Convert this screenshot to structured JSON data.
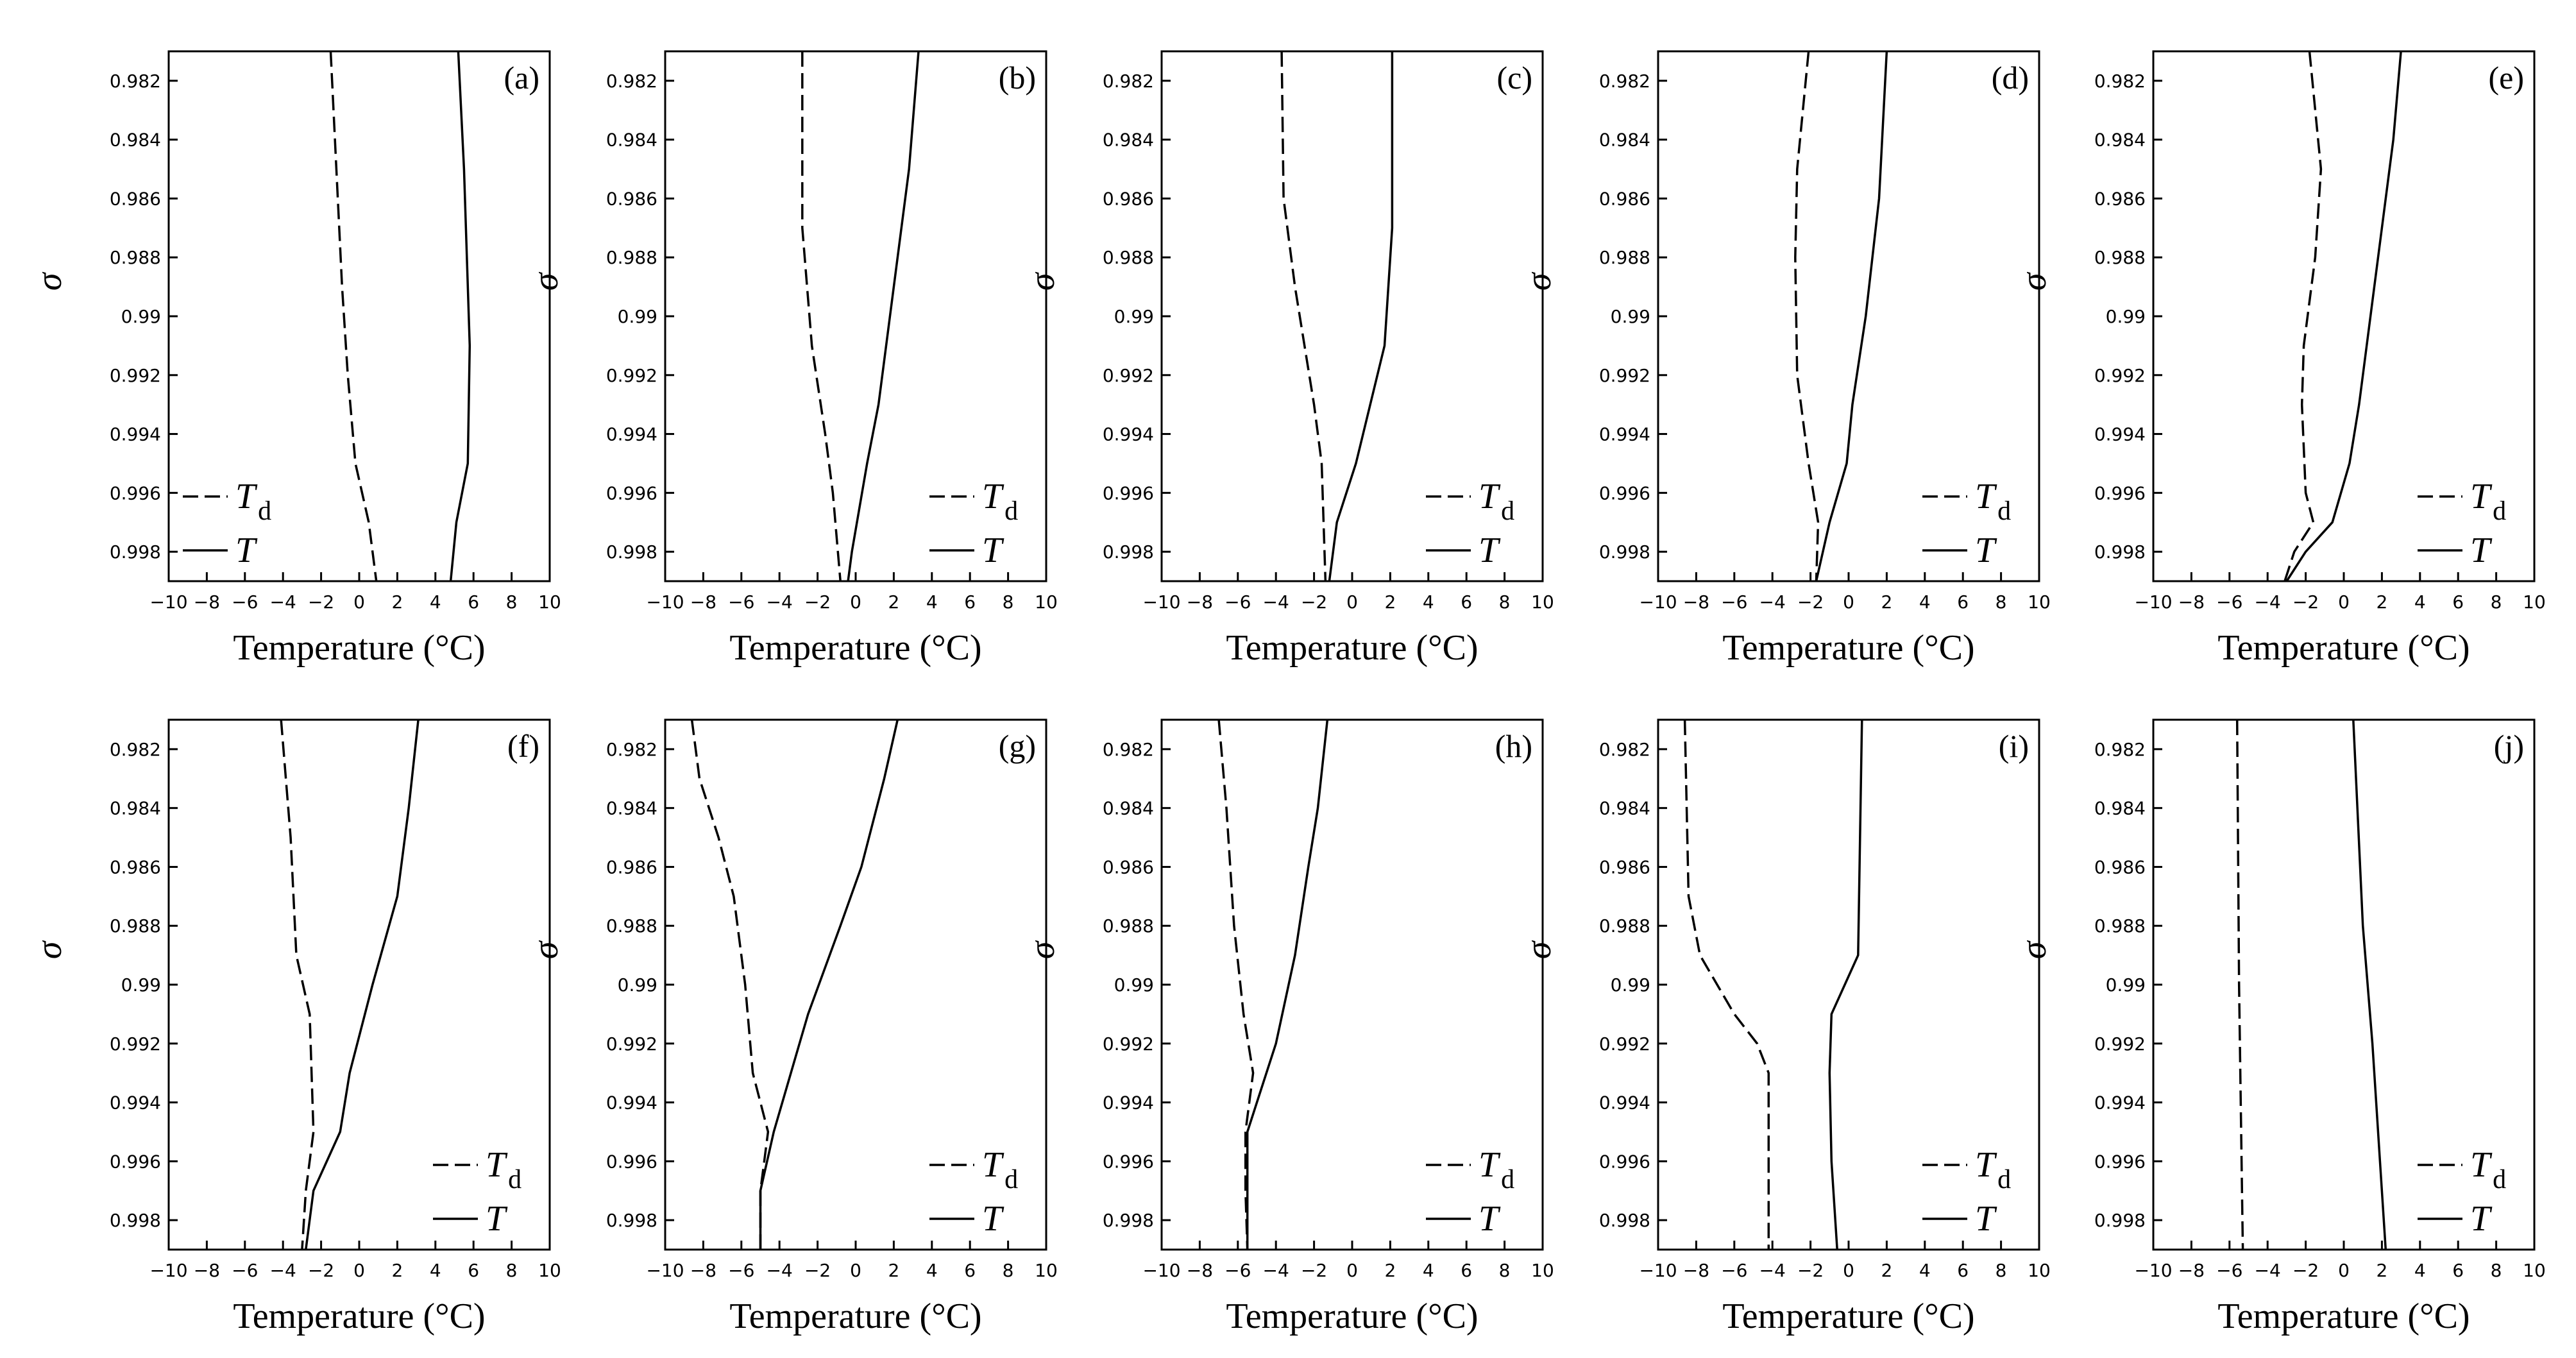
{
  "chart_data": [
    {
      "type": "line",
      "panel_label": "(a)",
      "xlabel": "Temperature (°C)",
      "ylabel": "σ",
      "xlim": [
        -10,
        10
      ],
      "ylim": [
        0.999,
        0.981
      ],
      "xticks": [
        "−10",
        "−8",
        "−6",
        "−4",
        "−2",
        "0",
        "2",
        "4",
        "6",
        "8",
        "10"
      ],
      "yticks": [
        "0.982",
        "0.984",
        "0.986",
        "0.988",
        "0.99",
        "0.992",
        "0.994",
        "0.996",
        "0.998"
      ],
      "legend": {
        "td": "T",
        "td_sub": "d",
        "t": "T"
      },
      "legend_position": "bottom-left",
      "series": [
        {
          "key": "Td",
          "style": "dashed",
          "points": [
            [
              -1.5,
              0.981
            ],
            [
              -1.2,
              0.985
            ],
            [
              -0.9,
              0.989
            ],
            [
              -0.6,
              0.992
            ],
            [
              -0.2,
              0.995
            ],
            [
              0.5,
              0.997
            ],
            [
              0.9,
              0.999
            ]
          ]
        },
        {
          "key": "T",
          "style": "solid",
          "points": [
            [
              5.2,
              0.981
            ],
            [
              5.5,
              0.985
            ],
            [
              5.8,
              0.991
            ],
            [
              5.7,
              0.995
            ],
            [
              5.1,
              0.997
            ],
            [
              4.8,
              0.999
            ]
          ]
        }
      ]
    },
    {
      "type": "line",
      "panel_label": "(b)",
      "xlabel": "Temperature (°C)",
      "ylabel": "σ",
      "xlim": [
        -10,
        10
      ],
      "ylim": [
        0.999,
        0.981
      ],
      "xticks": [
        "−10",
        "−8",
        "−6",
        "−4",
        "−2",
        "0",
        "2",
        "4",
        "6",
        "8",
        "10"
      ],
      "yticks": [
        "0.982",
        "0.984",
        "0.986",
        "0.988",
        "0.99",
        "0.992",
        "0.994",
        "0.996",
        "0.998"
      ],
      "legend": {
        "td": "T",
        "td_sub": "d",
        "t": "T"
      },
      "legend_position": "bottom-right",
      "series": [
        {
          "key": "Td",
          "style": "dashed",
          "points": [
            [
              -2.8,
              0.981
            ],
            [
              -2.8,
              0.987
            ],
            [
              -2.3,
              0.991
            ],
            [
              -1.6,
              0.994
            ],
            [
              -1.2,
              0.996
            ],
            [
              -0.8,
              0.999
            ]
          ]
        },
        {
          "key": "T",
          "style": "solid",
          "points": [
            [
              3.3,
              0.981
            ],
            [
              2.8,
              0.985
            ],
            [
              2.0,
              0.989
            ],
            [
              1.2,
              0.993
            ],
            [
              0.6,
              0.995
            ],
            [
              -0.2,
              0.998
            ],
            [
              -0.4,
              0.999
            ]
          ]
        }
      ]
    },
    {
      "type": "line",
      "panel_label": "(c)",
      "xlabel": "Temperature (°C)",
      "ylabel": "σ",
      "xlim": [
        -10,
        10
      ],
      "ylim": [
        0.999,
        0.981
      ],
      "xticks": [
        "−10",
        "−8",
        "−6",
        "−4",
        "−2",
        "0",
        "2",
        "4",
        "6",
        "8",
        "10"
      ],
      "yticks": [
        "0.982",
        "0.984",
        "0.986",
        "0.988",
        "0.99",
        "0.992",
        "0.994",
        "0.996",
        "0.998"
      ],
      "legend": {
        "td": "T",
        "td_sub": "d",
        "t": "T"
      },
      "legend_position": "bottom-right",
      "series": [
        {
          "key": "Td",
          "style": "dashed",
          "points": [
            [
              -3.7,
              0.981
            ],
            [
              -3.6,
              0.986
            ],
            [
              -3.0,
              0.989
            ],
            [
              -2.0,
              0.993
            ],
            [
              -1.6,
              0.995
            ],
            [
              -1.4,
              0.999
            ]
          ]
        },
        {
          "key": "T",
          "style": "solid",
          "points": [
            [
              2.1,
              0.981
            ],
            [
              2.1,
              0.987
            ],
            [
              1.7,
              0.991
            ],
            [
              0.2,
              0.995
            ],
            [
              -0.8,
              0.997
            ],
            [
              -1.2,
              0.999
            ]
          ]
        }
      ]
    },
    {
      "type": "line",
      "panel_label": "(d)",
      "xlabel": "Temperature (°C)",
      "ylabel": "σ",
      "xlim": [
        -10,
        10
      ],
      "ylim": [
        0.999,
        0.981
      ],
      "xticks": [
        "−10",
        "−8",
        "−6",
        "−4",
        "−2",
        "0",
        "2",
        "4",
        "6",
        "8",
        "10"
      ],
      "yticks": [
        "0.982",
        "0.984",
        "0.986",
        "0.988",
        "0.99",
        "0.992",
        "0.994",
        "0.996",
        "0.998"
      ],
      "legend": {
        "td": "T",
        "td_sub": "d",
        "t": "T"
      },
      "legend_position": "bottom-right",
      "series": [
        {
          "key": "Td",
          "style": "dashed",
          "points": [
            [
              -2.1,
              0.981
            ],
            [
              -2.7,
              0.985
            ],
            [
              -2.8,
              0.988
            ],
            [
              -2.7,
              0.992
            ],
            [
              -2.1,
              0.995
            ],
            [
              -1.6,
              0.997
            ],
            [
              -1.7,
              0.999
            ]
          ]
        },
        {
          "key": "T",
          "style": "solid",
          "points": [
            [
              2.0,
              0.981
            ],
            [
              1.6,
              0.986
            ],
            [
              0.9,
              0.99
            ],
            [
              0.2,
              0.993
            ],
            [
              -0.1,
              0.995
            ],
            [
              -1.0,
              0.997
            ],
            [
              -1.7,
              0.999
            ]
          ]
        }
      ]
    },
    {
      "type": "line",
      "panel_label": "(e)",
      "xlabel": "Temperature (°C)",
      "ylabel": "σ",
      "xlim": [
        -10,
        10
      ],
      "ylim": [
        0.999,
        0.981
      ],
      "xticks": [
        "−10",
        "−8",
        "−6",
        "−4",
        "−2",
        "0",
        "2",
        "4",
        "6",
        "8",
        "10"
      ],
      "yticks": [
        "0.982",
        "0.984",
        "0.986",
        "0.988",
        "0.99",
        "0.992",
        "0.994",
        "0.996",
        "0.998"
      ],
      "legend": {
        "td": "T",
        "td_sub": "d",
        "t": "T"
      },
      "legend_position": "bottom-right",
      "series": [
        {
          "key": "Td",
          "style": "dashed",
          "points": [
            [
              -1.8,
              0.981
            ],
            [
              -1.2,
              0.985
            ],
            [
              -1.5,
              0.988
            ],
            [
              -2.1,
              0.991
            ],
            [
              -2.2,
              0.993
            ],
            [
              -2.0,
              0.996
            ],
            [
              -1.6,
              0.997
            ],
            [
              -2.6,
              0.998
            ],
            [
              -3.1,
              0.999
            ]
          ]
        },
        {
          "key": "T",
          "style": "solid",
          "points": [
            [
              3.0,
              0.981
            ],
            [
              2.6,
              0.984
            ],
            [
              2.0,
              0.987
            ],
            [
              1.4,
              0.99
            ],
            [
              0.8,
              0.993
            ],
            [
              0.3,
              0.995
            ],
            [
              -0.6,
              0.997
            ],
            [
              -2.0,
              0.998
            ],
            [
              -3.0,
              0.999
            ]
          ]
        }
      ]
    },
    {
      "type": "line",
      "panel_label": "(f)",
      "xlabel": "Temperature (°C)",
      "ylabel": "σ",
      "xlim": [
        -10,
        10
      ],
      "ylim": [
        0.999,
        0.981
      ],
      "xticks": [
        "−10",
        "−8",
        "−6",
        "−4",
        "−2",
        "0",
        "2",
        "4",
        "6",
        "8",
        "10"
      ],
      "yticks": [
        "0.982",
        "0.984",
        "0.986",
        "0.988",
        "0.99",
        "0.992",
        "0.994",
        "0.996",
        "0.998"
      ],
      "legend": {
        "td": "T",
        "td_sub": "d",
        "t": "T"
      },
      "legend_position": "bottom-right",
      "series": [
        {
          "key": "Td",
          "style": "dashed",
          "points": [
            [
              -4.1,
              0.981
            ],
            [
              -3.6,
              0.985
            ],
            [
              -3.3,
              0.989
            ],
            [
              -2.6,
              0.991
            ],
            [
              -2.4,
              0.995
            ],
            [
              -2.8,
              0.997
            ],
            [
              -3.0,
              0.999
            ]
          ]
        },
        {
          "key": "T",
          "style": "solid",
          "points": [
            [
              3.1,
              0.981
            ],
            [
              2.6,
              0.984
            ],
            [
              2.0,
              0.987
            ],
            [
              0.7,
              0.99
            ],
            [
              -0.5,
              0.993
            ],
            [
              -1.0,
              0.995
            ],
            [
              -2.4,
              0.997
            ],
            [
              -2.8,
              0.999
            ]
          ]
        }
      ]
    },
    {
      "type": "line",
      "panel_label": "(g)",
      "xlabel": "Temperature (°C)",
      "ylabel": "σ",
      "xlim": [
        -10,
        10
      ],
      "ylim": [
        0.999,
        0.981
      ],
      "xticks": [
        "−10",
        "−8",
        "−6",
        "−4",
        "−2",
        "0",
        "2",
        "4",
        "6",
        "8",
        "10"
      ],
      "yticks": [
        "0.982",
        "0.984",
        "0.986",
        "0.988",
        "0.99",
        "0.992",
        "0.994",
        "0.996",
        "0.998"
      ],
      "legend": {
        "td": "T",
        "td_sub": "d",
        "t": "T"
      },
      "legend_position": "bottom-right",
      "series": [
        {
          "key": "Td",
          "style": "dashed",
          "points": [
            [
              -8.6,
              0.981
            ],
            [
              -8.2,
              0.983
            ],
            [
              -7.2,
              0.985
            ],
            [
              -6.4,
              0.987
            ],
            [
              -5.8,
              0.99
            ],
            [
              -5.4,
              0.993
            ],
            [
              -4.6,
              0.995
            ],
            [
              -5.0,
              0.997
            ],
            [
              -5.0,
              0.999
            ]
          ]
        },
        {
          "key": "T",
          "style": "solid",
          "points": [
            [
              2.2,
              0.981
            ],
            [
              1.5,
              0.983
            ],
            [
              0.3,
              0.986
            ],
            [
              -0.8,
              0.988
            ],
            [
              -2.5,
              0.991
            ],
            [
              -3.4,
              0.993
            ],
            [
              -4.3,
              0.995
            ],
            [
              -5.0,
              0.997
            ],
            [
              -5.0,
              0.999
            ]
          ]
        }
      ]
    },
    {
      "type": "line",
      "panel_label": "(h)",
      "xlabel": "Temperature (°C)",
      "ylabel": "σ",
      "xlim": [
        -10,
        10
      ],
      "ylim": [
        0.999,
        0.981
      ],
      "xticks": [
        "−10",
        "−8",
        "−6",
        "−4",
        "−2",
        "0",
        "2",
        "4",
        "6",
        "8",
        "10"
      ],
      "yticks": [
        "0.982",
        "0.984",
        "0.986",
        "0.988",
        "0.99",
        "0.992",
        "0.994",
        "0.996",
        "0.998"
      ],
      "legend": {
        "td": "T",
        "td_sub": "d",
        "t": "T"
      },
      "legend_position": "bottom-right",
      "series": [
        {
          "key": "Td",
          "style": "dashed",
          "points": [
            [
              -7.0,
              0.981
            ],
            [
              -6.6,
              0.984
            ],
            [
              -6.2,
              0.988
            ],
            [
              -5.7,
              0.991
            ],
            [
              -5.2,
              0.993
            ],
            [
              -5.6,
              0.995
            ],
            [
              -5.6,
              0.997
            ],
            [
              -5.5,
              0.999
            ]
          ]
        },
        {
          "key": "T",
          "style": "solid",
          "points": [
            [
              -1.3,
              0.981
            ],
            [
              -1.8,
              0.984
            ],
            [
              -2.3,
              0.986
            ],
            [
              -3.0,
              0.989
            ],
            [
              -4.0,
              0.992
            ],
            [
              -5.0,
              0.994
            ],
            [
              -5.5,
              0.995
            ],
            [
              -5.5,
              0.999
            ]
          ]
        }
      ]
    },
    {
      "type": "line",
      "panel_label": "(i)",
      "xlabel": "Temperature (°C)",
      "ylabel": "σ",
      "xlim": [
        -10,
        10
      ],
      "ylim": [
        0.999,
        0.981
      ],
      "xticks": [
        "−10",
        "−8",
        "−6",
        "−4",
        "−2",
        "0",
        "2",
        "4",
        "6",
        "8",
        "10"
      ],
      "yticks": [
        "0.982",
        "0.984",
        "0.986",
        "0.988",
        "0.99",
        "0.992",
        "0.994",
        "0.996",
        "0.998"
      ],
      "legend": {
        "td": "T",
        "td_sub": "d",
        "t": "T"
      },
      "legend_position": "bottom-right",
      "series": [
        {
          "key": "Td",
          "style": "dashed",
          "points": [
            [
              -8.6,
              0.981
            ],
            [
              -8.4,
              0.987
            ],
            [
              -7.8,
              0.989
            ],
            [
              -6.0,
              0.991
            ],
            [
              -4.8,
              0.992
            ],
            [
              -4.2,
              0.993
            ],
            [
              -4.2,
              0.999
            ]
          ]
        },
        {
          "key": "T",
          "style": "solid",
          "points": [
            [
              0.7,
              0.981
            ],
            [
              0.5,
              0.989
            ],
            [
              -0.9,
              0.991
            ],
            [
              -1.0,
              0.993
            ],
            [
              -0.9,
              0.996
            ],
            [
              -0.6,
              0.999
            ]
          ]
        }
      ]
    },
    {
      "type": "line",
      "panel_label": "(j)",
      "xlabel": "Temperature (°C)",
      "ylabel": "σ",
      "xlim": [
        -10,
        10
      ],
      "ylim": [
        0.999,
        0.981
      ],
      "xticks": [
        "−10",
        "−8",
        "−6",
        "−4",
        "−2",
        "0",
        "2",
        "4",
        "6",
        "8",
        "10"
      ],
      "yticks": [
        "0.982",
        "0.984",
        "0.986",
        "0.988",
        "0.99",
        "0.992",
        "0.994",
        "0.996",
        "0.998"
      ],
      "legend": {
        "td": "T",
        "td_sub": "d",
        "t": "T"
      },
      "legend_position": "bottom-right",
      "series": [
        {
          "key": "Td",
          "style": "dashed",
          "points": [
            [
              -5.6,
              0.981
            ],
            [
              -5.5,
              0.99
            ],
            [
              -5.3,
              0.999
            ]
          ]
        },
        {
          "key": "T",
          "style": "solid",
          "points": [
            [
              0.5,
              0.981
            ],
            [
              1.0,
              0.988
            ],
            [
              1.5,
              0.992
            ],
            [
              1.9,
              0.996
            ],
            [
              2.2,
              0.999
            ]
          ]
        }
      ]
    }
  ]
}
